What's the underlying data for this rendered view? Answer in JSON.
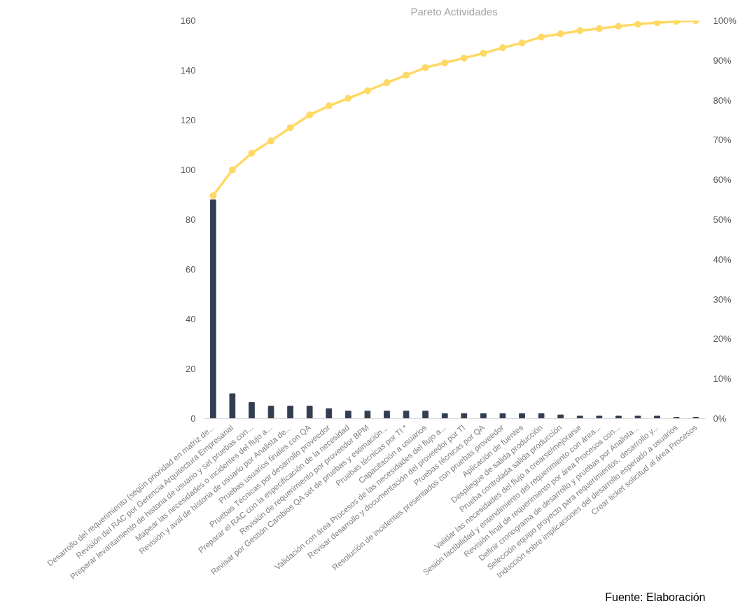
{
  "chart_data": {
    "type": "bar",
    "title": "Pareto Actividades",
    "categories": [
      "Desarrollo del requerimiento (según prioridad en matriz de...",
      "Revisión del RAC por Gerencia Arquitectura Empresarial",
      "Preparar levantamiento de historia de usuario y set pruebas con...",
      "Mapear las necesidades o incidentes del flujo a...",
      "Revisión y aval de historia de usuario por Analista de...",
      "Pruebas usuarios finales con QA",
      "Pruebas Técnicas por desarrollo proveedor",
      "Preparar el RAC con la especificación de la necesidad",
      "Revisión de requerimiento por proveedor BPM",
      "Revisar por Gestión Cambios QA set de pruebas y estimación...",
      "Pruebas técnicas por TI *",
      "Capacitación a usuarios",
      "Validación con área Procesos de las necesidades del flujo a...",
      "Revisar desarrollo y documentación del proveedor por TI",
      "Pruebas técnicas por QA",
      "Resolución de incidentes presentados con pruebas proveedor",
      "Aplicación de fuentes",
      "Despliegue de salida producción",
      "Prueba controlada salida producción",
      "Validar las necesidades del flujo a crearse/mejorarse",
      "Sesión factibilidad y entendimiento del requerimiento con área...",
      "Revisión final de requerimiento por área Procesos con...",
      "Definir cronograma de desarrollo y pruebas por Analista...",
      "Selección equipo proyecto para requerimientos, desarrollo y...",
      "Inducción sobre implicaciones del desarrollo esperado a usuarios",
      "Crear ticket solicitud al área Procesos"
    ],
    "series": [
      {
        "color": "#333f50",
        "values": [
          88,
          10,
          6.5,
          5,
          5,
          5,
          4,
          3,
          3,
          3,
          3,
          3,
          2,
          2,
          2,
          2,
          2,
          2,
          1.5,
          1,
          1,
          1,
          1,
          1,
          0.5,
          0.5
        ]
      },
      {
        "type": "line",
        "axis": "y2",
        "color": "#ffd966",
        "values": [
          56,
          62.5,
          66.7,
          69.8,
          73.1,
          76.3,
          78.6,
          80.5,
          82.4,
          84.4,
          86.3,
          88.2,
          89.4,
          90.6,
          91.8,
          93.2,
          94.4,
          95.9,
          96.7,
          97.5,
          98,
          98.6,
          99.1,
          99.5,
          99.8,
          100
        ]
      }
    ],
    "ylim": [
      0,
      160
    ],
    "yticks": [
      0,
      20,
      40,
      60,
      80,
      100,
      120,
      140,
      160
    ],
    "y2lim": [
      0,
      100
    ],
    "y2ticks": [
      {
        "value": 0,
        "label": "0%"
      },
      {
        "value": 10,
        "label": "10%"
      },
      {
        "value": 20,
        "label": "20%"
      },
      {
        "value": 30,
        "label": "30%"
      },
      {
        "value": 40,
        "label": "40%"
      },
      {
        "value": 50,
        "label": "50%"
      },
      {
        "value": 60,
        "label": "60%"
      },
      {
        "value": 70,
        "label": "70%"
      },
      {
        "value": 80,
        "label": "80%"
      },
      {
        "value": 90,
        "label": "90%"
      },
      {
        "value": 100,
        "label": "100%"
      }
    ],
    "marker": "circle",
    "grid": false,
    "annotations": [
      "Fuente: Elaboración"
    ]
  }
}
